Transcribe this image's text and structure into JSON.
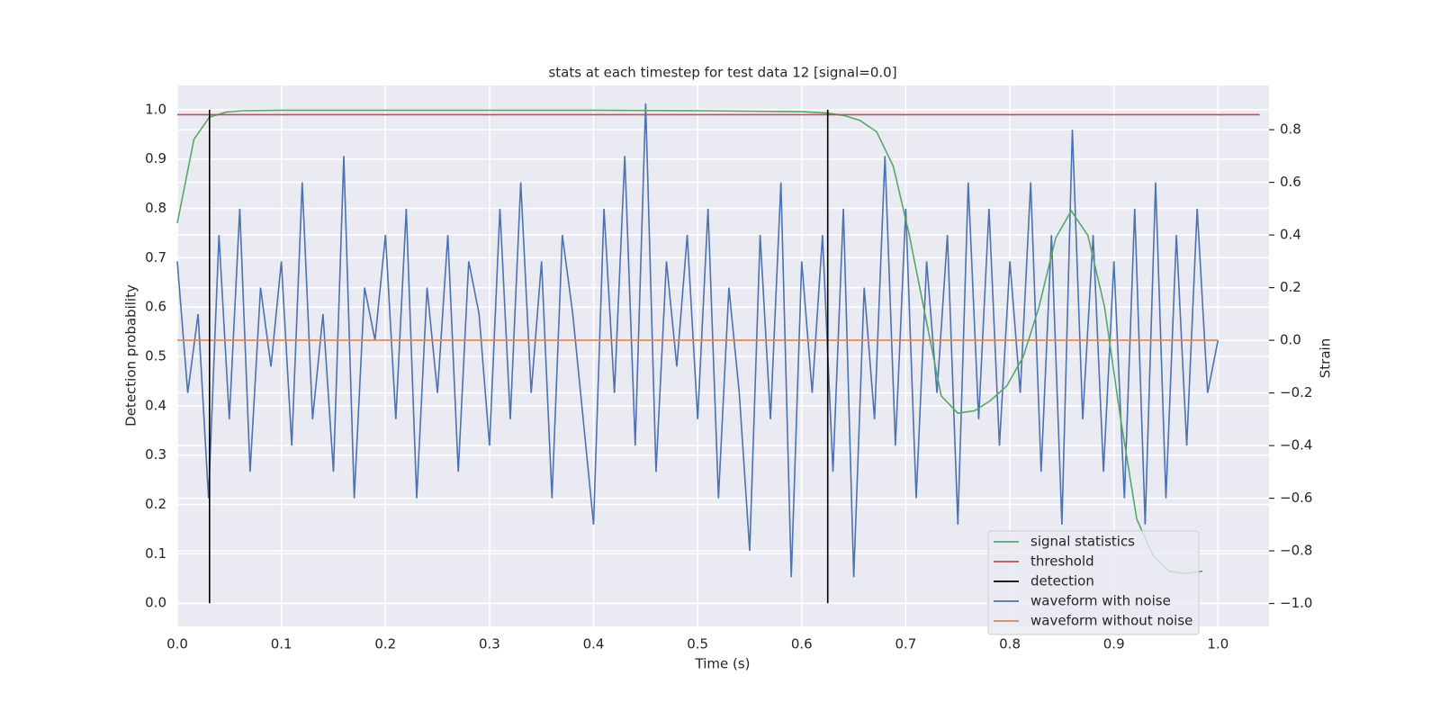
{
  "chart_data": {
    "type": "line",
    "title": "stats at each timestep for test data 12 [signal=0.0]",
    "xlabel": "Time (s)",
    "ylabel": "Detection probability",
    "y2label": "Strain",
    "xlim": [
      0,
      1.049
    ],
    "ylim": [
      -0.047,
      1.049
    ],
    "y2lim": [
      -1.087,
      0.968
    ],
    "xticks": [
      {
        "value": 0,
        "label": "0.0"
      },
      0.1,
      0.2,
      0.3,
      0.4,
      0.5,
      0.6,
      0.7,
      0.8,
      0.9,
      {
        "value": 1,
        "label": "1.0"
      }
    ],
    "yticks": [
      {
        "value": 0,
        "label": "0.0"
      },
      0.1,
      0.2,
      0.3,
      0.4,
      0.5,
      0.6,
      0.7,
      0.8,
      0.9,
      {
        "value": 1,
        "label": "1.0"
      }
    ],
    "y2ticks": [
      {
        "value": -1,
        "label": "−1.0"
      },
      {
        "value": -0.8,
        "label": "−0.8"
      },
      {
        "value": -0.6,
        "label": "−0.6"
      },
      {
        "value": -0.4,
        "label": "−0.4"
      },
      {
        "value": -0.2,
        "label": "−0.2"
      },
      {
        "value": 0,
        "label": "0.0"
      },
      0.2,
      0.4,
      0.6,
      0.8
    ],
    "grid": true,
    "legend": "lower right",
    "series": [
      {
        "name": "signal statistics",
        "color": "#55a868",
        "axis": "y",
        "x": [
          0,
          0.016,
          0.031,
          0.047,
          0.063,
          0.1,
          0.2,
          0.3,
          0.4,
          0.5,
          0.6,
          0.625,
          0.641,
          0.656,
          0.672,
          0.688,
          0.703,
          0.719,
          0.734,
          0.75,
          0.766,
          0.781,
          0.797,
          0.813,
          0.828,
          0.844,
          0.859,
          0.875,
          0.891,
          0.906,
          0.922,
          0.938,
          0.953,
          0.969,
          0.985
        ],
        "values": [
          0.77,
          0.94,
          0.985,
          0.995,
          0.998,
          0.999,
          0.999,
          0.999,
          0.999,
          0.998,
          0.996,
          0.993,
          0.988,
          0.978,
          0.955,
          0.885,
          0.75,
          0.58,
          0.42,
          0.385,
          0.39,
          0.41,
          0.44,
          0.5,
          0.6,
          0.74,
          0.795,
          0.745,
          0.6,
          0.38,
          0.17,
          0.095,
          0.065,
          0.06,
          0.065
        ]
      },
      {
        "name": "threshold",
        "color": "#c44e52",
        "axis": "y",
        "x": [
          0,
          1.04
        ],
        "values": [
          0.99,
          0.99
        ]
      },
      {
        "name": "detection",
        "color": "#000000",
        "axis": "y",
        "x": [
          0.031,
          0.031,
          0.031,
          0.625,
          0.625
        ],
        "values": [
          0,
          1,
          null,
          0,
          1
        ]
      },
      {
        "name": "waveform with noise",
        "color": "#4c72b0",
        "axis": "y2",
        "x": [
          0,
          0.01,
          0.02,
          0.03,
          0.04,
          0.05,
          0.06,
          0.07,
          0.08,
          0.09,
          0.1,
          0.11,
          0.12,
          0.13,
          0.14,
          0.15,
          0.16,
          0.17,
          0.18,
          0.19,
          0.2,
          0.21,
          0.22,
          0.23,
          0.24,
          0.25,
          0.26,
          0.27,
          0.28,
          0.29,
          0.3,
          0.31,
          0.32,
          0.33,
          0.34,
          0.35,
          0.36,
          0.37,
          0.38,
          0.39,
          0.4,
          0.41,
          0.42,
          0.43,
          0.44,
          0.45,
          0.46,
          0.47,
          0.48,
          0.49,
          0.5,
          0.51,
          0.52,
          0.53,
          0.54,
          0.55,
          0.56,
          0.57,
          0.58,
          0.59,
          0.6,
          0.61,
          0.62,
          0.63,
          0.64,
          0.65,
          0.66,
          0.67,
          0.68,
          0.69,
          0.7,
          0.71,
          0.72,
          0.73,
          0.74,
          0.75,
          0.76,
          0.77,
          0.78,
          0.79,
          0.8,
          0.81,
          0.82,
          0.83,
          0.84,
          0.85,
          0.86,
          0.87,
          0.88,
          0.89,
          0.9,
          0.91,
          0.92,
          0.93,
          0.94,
          0.95,
          0.96,
          0.97,
          0.98,
          0.99,
          1
        ],
        "values": [
          0.3,
          -0.2,
          0.1,
          -0.6,
          0.4,
          -0.3,
          0.5,
          -0.5,
          0.2,
          -0.1,
          0.3,
          -0.4,
          0.6,
          -0.3,
          0.1,
          -0.5,
          0.7,
          -0.6,
          0.2,
          0.0,
          0.4,
          -0.3,
          0.5,
          -0.6,
          0.2,
          -0.2,
          0.4,
          -0.5,
          0.3,
          0.1,
          -0.4,
          0.5,
          -0.3,
          0.6,
          -0.2,
          0.3,
          -0.6,
          0.4,
          0.1,
          -0.3,
          -0.7,
          0.5,
          -0.2,
          0.7,
          -0.4,
          0.9,
          -0.5,
          0.3,
          -0.1,
          0.4,
          -0.3,
          0.5,
          -0.6,
          0.2,
          -0.2,
          -0.8,
          0.4,
          -0.3,
          0.6,
          -0.9,
          0.3,
          -0.2,
          0.4,
          -0.5,
          0.5,
          -0.9,
          0.2,
          -0.3,
          0.7,
          -0.4,
          0.5,
          -0.6,
          0.3,
          -0.2,
          0.4,
          -0.7,
          0.6,
          -0.3,
          0.5,
          -0.4,
          0.3,
          -0.2,
          0.6,
          -0.5,
          0.4,
          -0.7,
          0.8,
          -0.3,
          0.4,
          -0.5,
          0.3,
          -0.6,
          0.5,
          -0.7,
          0.6,
          -0.6,
          0.4,
          -0.4,
          0.5,
          -0.2,
          0.0
        ]
      },
      {
        "name": "waveform without noise",
        "color": "#dd8452",
        "axis": "y2",
        "x": [
          0,
          1
        ],
        "values": [
          0,
          0
        ]
      }
    ]
  }
}
